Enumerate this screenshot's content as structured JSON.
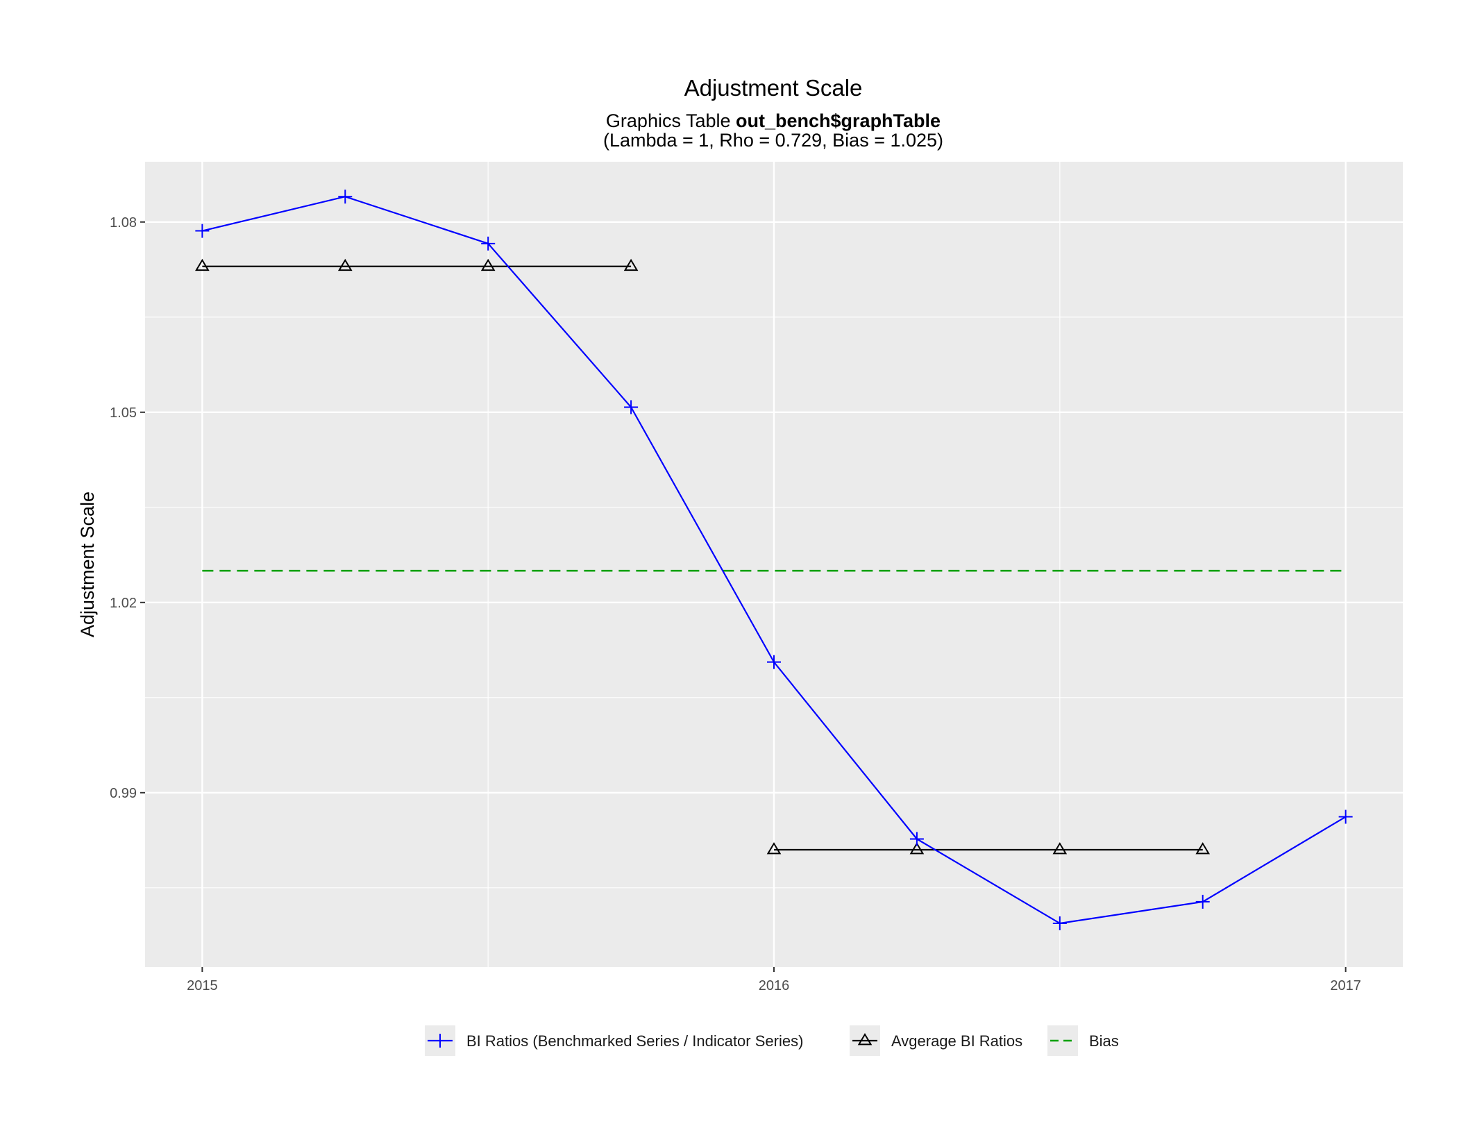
{
  "chart_data": {
    "type": "line",
    "title": "Adjustment Scale",
    "subtitle_prefix": "Graphics Table ",
    "subtitle_bold": "out_bench$graphTable",
    "subtitle_line2": "(Lambda = 1, Rho = 0.729, Bias = 1.025)",
    "xlabel": "",
    "ylabel": "Adjustment Scale",
    "xlim": [
      2014.9,
      2017.1
    ],
    "ylim": [
      0.9625,
      1.0895
    ],
    "x_ticks": [
      2015,
      2016,
      2017
    ],
    "x_tick_labels": [
      "2015",
      "2016",
      "2017"
    ],
    "y_ticks": [
      0.99,
      1.02,
      1.05,
      1.08
    ],
    "y_tick_labels": [
      "0.99",
      "1.02",
      "1.05",
      "1.08"
    ],
    "grid": true,
    "legend_position": "bottom",
    "series": [
      {
        "name": "BI Ratios (Benchmarked Series / Indicator Series)",
        "color": "#0000ff",
        "marker": "plus",
        "x": [
          2015.0,
          2015.25,
          2015.5,
          2015.75,
          2016.0,
          2016.25,
          2016.5,
          2016.75,
          2017.0
        ],
        "y": [
          1.0786,
          1.084,
          1.0766,
          1.0508,
          1.0106,
          0.9827,
          0.9694,
          0.9728,
          0.9862
        ]
      },
      {
        "name": "Avgerage BI Ratios",
        "color": "#000000",
        "marker": "triangle",
        "segments": [
          {
            "x": [
              2015.0,
              2015.25,
              2015.5,
              2015.75
            ],
            "y": [
              1.073,
              1.073,
              1.073,
              1.073
            ]
          },
          {
            "x": [
              2016.0,
              2016.25,
              2016.5,
              2016.75
            ],
            "y": [
              0.981,
              0.981,
              0.981,
              0.981
            ]
          }
        ]
      },
      {
        "name": "Bias",
        "color": "#00a000",
        "style": "dashed",
        "x": [
          2015.0,
          2017.0
        ],
        "y": [
          1.025,
          1.025
        ]
      }
    ]
  }
}
